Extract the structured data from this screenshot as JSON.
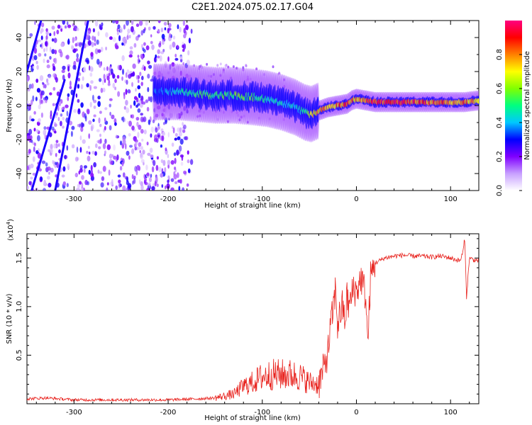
{
  "chart_data": [
    {
      "type": "heatmap",
      "title": "C2E1.2024.075.02.17.G04",
      "xlabel": "Height of straight line (km)",
      "ylabel": "Frequency (Hz)",
      "xlim": [
        -350,
        130
      ],
      "ylim": [
        -50,
        50
      ],
      "xticks": [
        -300,
        -200,
        -100,
        0,
        100
      ],
      "yticks": [
        -40,
        -20,
        0,
        20,
        40
      ],
      "ridge": {
        "description_units": "frequency (Hz) of the main spectral band vs height (km)",
        "x": [
          -215,
          -190,
          -170,
          -150,
          -130,
          -110,
          -95,
          -80,
          -65,
          -55,
          -48,
          -40,
          -30,
          -20,
          -10,
          -5,
          0,
          20,
          50,
          80,
          100,
          115,
          130
        ],
        "y": [
          8,
          8,
          7,
          6,
          6,
          5,
          4,
          2,
          -1,
          -4,
          -5,
          -3,
          -1,
          0,
          1,
          3,
          4,
          2,
          2,
          2,
          2,
          2,
          3
        ],
        "peak_amplitude": [
          0.35,
          0.45,
          0.55,
          0.55,
          0.6,
          0.55,
          0.5,
          0.5,
          0.45,
          0.5,
          0.7,
          0.8,
          0.85,
          0.85,
          0.9,
          0.9,
          0.8,
          0.95,
          0.95,
          0.9,
          0.85,
          0.85,
          0.8
        ]
      },
      "streaks": [
        {
          "x": [
            -355,
            -335
          ],
          "y": [
            10,
            50
          ]
        },
        {
          "x": [
            -345,
            -310
          ],
          "y": [
            -50,
            15
          ]
        },
        {
          "x": [
            -320,
            -285
          ],
          "y": [
            -50,
            50
          ]
        }
      ],
      "colorbar": {
        "label": "Normalized spectral amplitude",
        "range": [
          0,
          1
        ],
        "ticks": [
          "0.0",
          "0.2",
          "0.4",
          "0.6",
          "0.8"
        ],
        "colors": [
          "#ffffff",
          "#c8a0ff",
          "#8000ff",
          "#0000ff",
          "#00c8ff",
          "#00ff80",
          "#80ff00",
          "#ffff00",
          "#ff8000",
          "#ff0000",
          "#ff0080"
        ]
      }
    },
    {
      "type": "line",
      "xlabel": "Height of straight line (km)",
      "ylabel": "SNR (10 * v/v)",
      "y_multiplier_label": "(x10",
      "y_multiplier_exp": "4",
      "y_multiplier_close": ")",
      "xlim": [
        -350,
        130
      ],
      "ylim": [
        0,
        1.75
      ],
      "xticks": [
        -300,
        -200,
        -100,
        0,
        100
      ],
      "yticks": [
        "0.5",
        "1.0",
        "1.5"
      ],
      "color": "#e8231e",
      "series": [
        {
          "x": [
            -350,
            -330,
            -300,
            -250,
            -200,
            -170,
            -150,
            -130,
            -120,
            -110,
            -100,
            -90,
            -80,
            -70,
            -60,
            -50,
            -40,
            -35,
            -30,
            -28,
            -25,
            -22,
            -20,
            -18,
            -15,
            -12,
            -10,
            -8,
            -5,
            -3,
            0,
            5,
            10,
            12,
            15,
            20,
            30,
            40,
            50,
            60,
            70,
            80,
            90,
            100,
            110,
            113,
            115,
            117,
            120,
            125,
            130
          ],
          "y": [
            0.05,
            0.06,
            0.04,
            0.04,
            0.04,
            0.05,
            0.06,
            0.1,
            0.18,
            0.22,
            0.28,
            0.3,
            0.3,
            0.3,
            0.28,
            0.22,
            0.2,
            0.35,
            0.55,
            0.75,
            0.95,
            1.2,
            0.8,
            0.9,
            1.0,
            0.85,
            1.1,
            1.0,
            1.1,
            1.2,
            1.15,
            1.3,
            1.1,
            0.6,
            1.3,
            1.45,
            1.5,
            1.52,
            1.53,
            1.52,
            1.52,
            1.51,
            1.52,
            1.5,
            1.47,
            1.55,
            1.7,
            1.1,
            1.5,
            1.48,
            1.47
          ]
        }
      ]
    }
  ]
}
